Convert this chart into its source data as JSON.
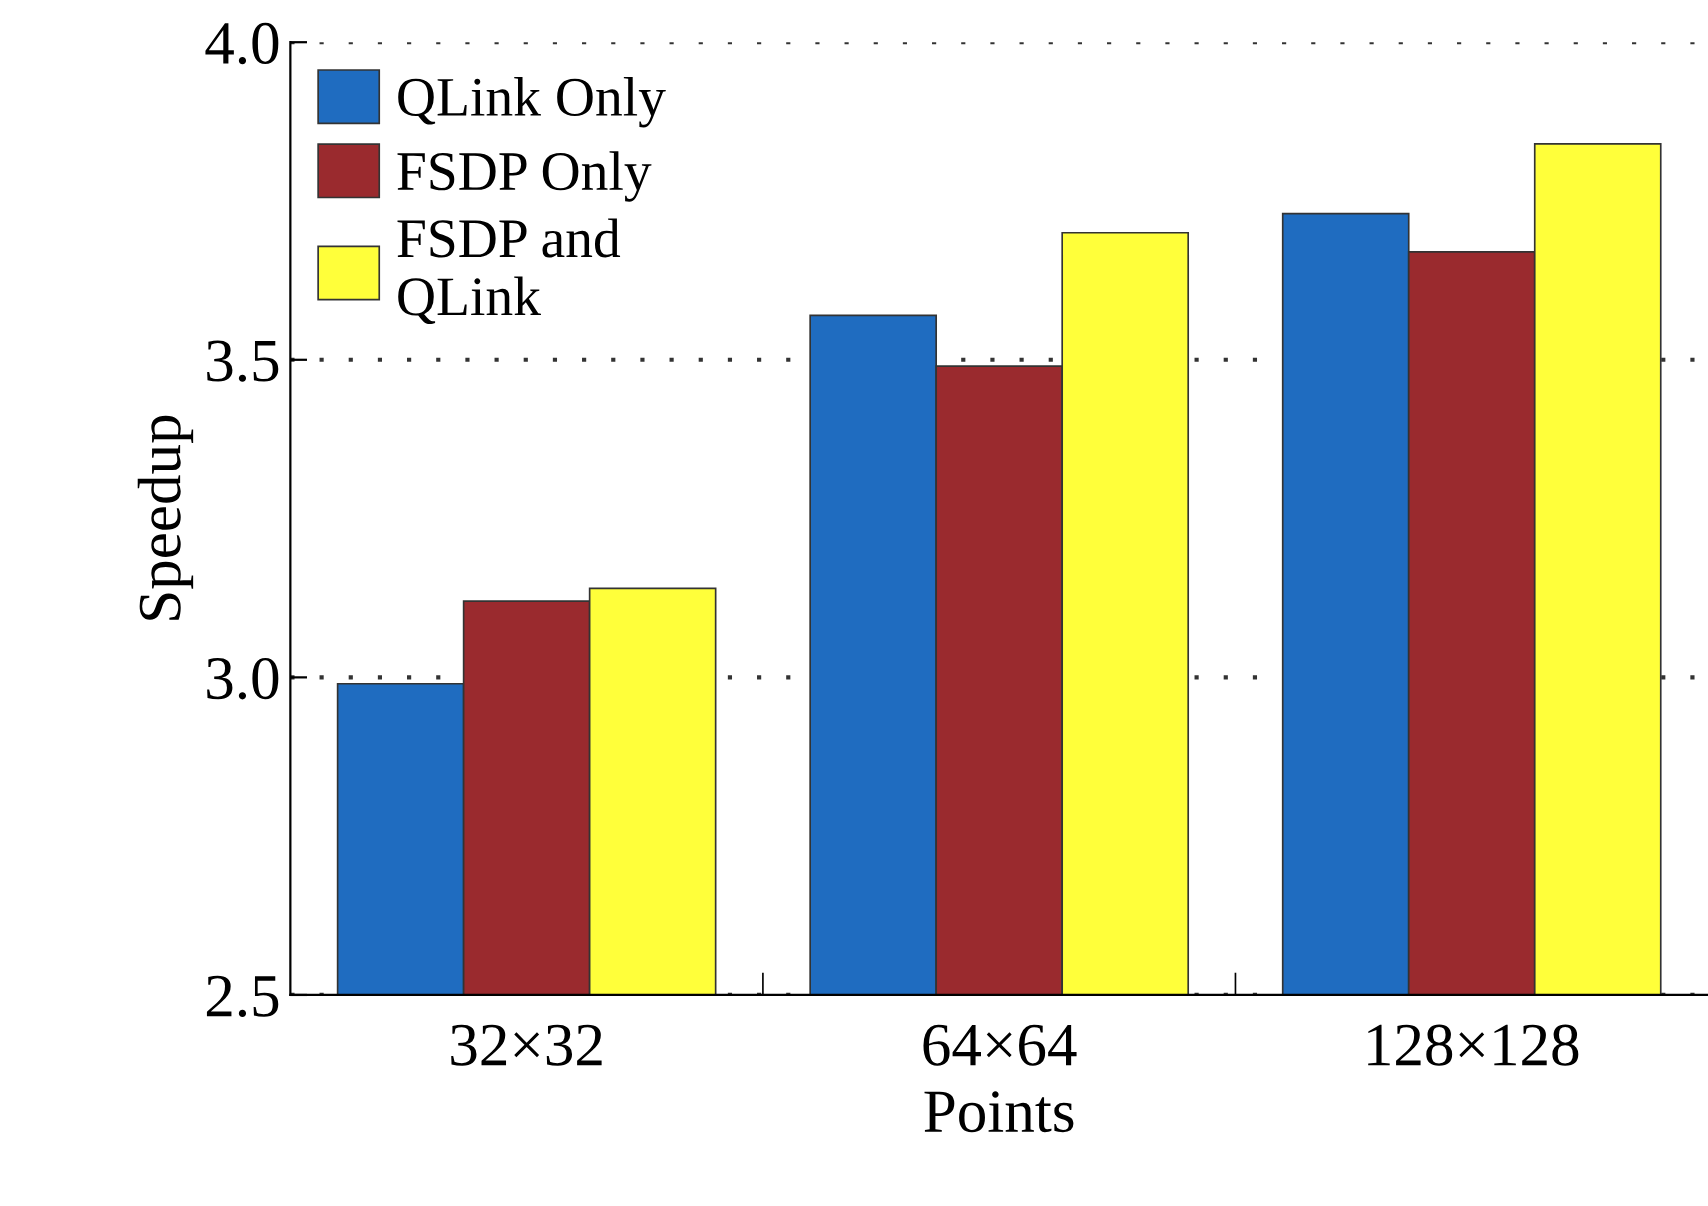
{
  "chart_data": {
    "type": "bar",
    "xlabel": "Points",
    "ylabel": "Speedup",
    "categories": [
      "32×32",
      "64×64",
      "128×128"
    ],
    "series": [
      {
        "name": "QLink Only",
        "color": "#1f6cc0",
        "values": [
          2.99,
          3.57,
          3.73
        ]
      },
      {
        "name": "FSDP Only",
        "color": "#9a2a2e",
        "values": [
          3.12,
          3.49,
          3.67
        ]
      },
      {
        "name": "FSDP and\nQLink",
        "color": "#ffff3a",
        "values": [
          3.14,
          3.7,
          3.84
        ]
      }
    ],
    "ylim": [
      2.5,
      4.0
    ],
    "yticks": [
      {
        "value": 2.5,
        "label": "2.5"
      },
      {
        "value": 3.0,
        "label": "3.0"
      },
      {
        "value": 3.5,
        "label": "3.5"
      },
      {
        "value": 4.0,
        "label": "4.0"
      }
    ],
    "grid": "y",
    "legend": "top left"
  }
}
